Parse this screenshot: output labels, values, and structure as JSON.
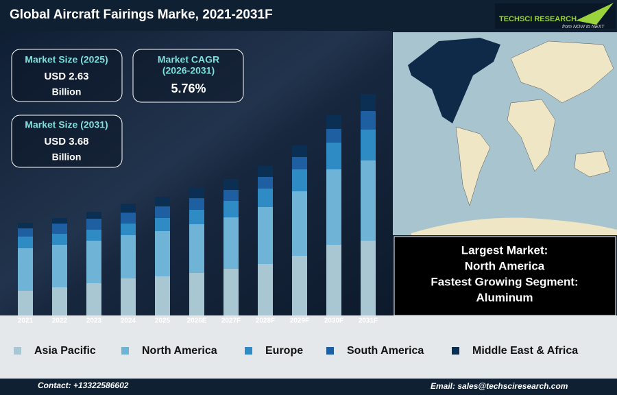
{
  "header": {
    "title": "Global Aircraft Fairings Marke, 2021-2031F",
    "logo": "TECHSCI RESEARCH",
    "tagline": "from NOW to NEXT"
  },
  "kpis": [
    {
      "label": "Market Size (2025)",
      "value": "USD 2.63",
      "unit": "Billion"
    },
    {
      "label": "Market CAGR",
      "period": "(2026-2031)",
      "value": "5.76%"
    },
    {
      "label": "Market Size (2031)",
      "value": "USD 3.68",
      "unit": "Billion"
    }
  ],
  "insights": [
    "Largest Market:",
    "North America",
    "Fastest Growing Segment:",
    "Aluminum"
  ],
  "footer": {
    "contact": "Contact: +13322586602",
    "email": "Email: sales@techsciresearch.com"
  },
  "chart_data": {
    "type": "stacked_bar",
    "categories": [
      "2021",
      "2022",
      "2023",
      "2024",
      "2025",
      "2026E",
      "2027F",
      "2028F",
      "2029F",
      "2030F",
      "2031F"
    ],
    "series": [
      {
        "name": "Asia Pacific",
        "color": "#a9c6d3",
        "values": [
          36,
          41,
          47,
          54,
          57,
          62,
          68,
          75,
          87,
          103,
          109
        ]
      },
      {
        "name": "North America",
        "color": "#6fb3d6",
        "values": [
          62,
          62,
          62,
          63,
          66,
          71,
          75,
          83,
          94,
          110,
          117
        ]
      },
      {
        "name": "Europe",
        "color": "#2e8bc4",
        "values": [
          17,
          16,
          16,
          17,
          19,
          21,
          24,
          27,
          32,
          39,
          45
        ]
      },
      {
        "name": "South America",
        "color": "#1d5fa0",
        "values": [
          12,
          15,
          16,
          16,
          17,
          17,
          16,
          17,
          18,
          20,
          27
        ]
      },
      {
        "name": "Middle East & Africa",
        "color": "#0b2f52",
        "values": [
          8,
          8,
          10,
          13,
          14,
          15,
          16,
          16,
          17,
          20,
          25
        ]
      }
    ],
    "ylim": [
      0,
      340
    ]
  }
}
